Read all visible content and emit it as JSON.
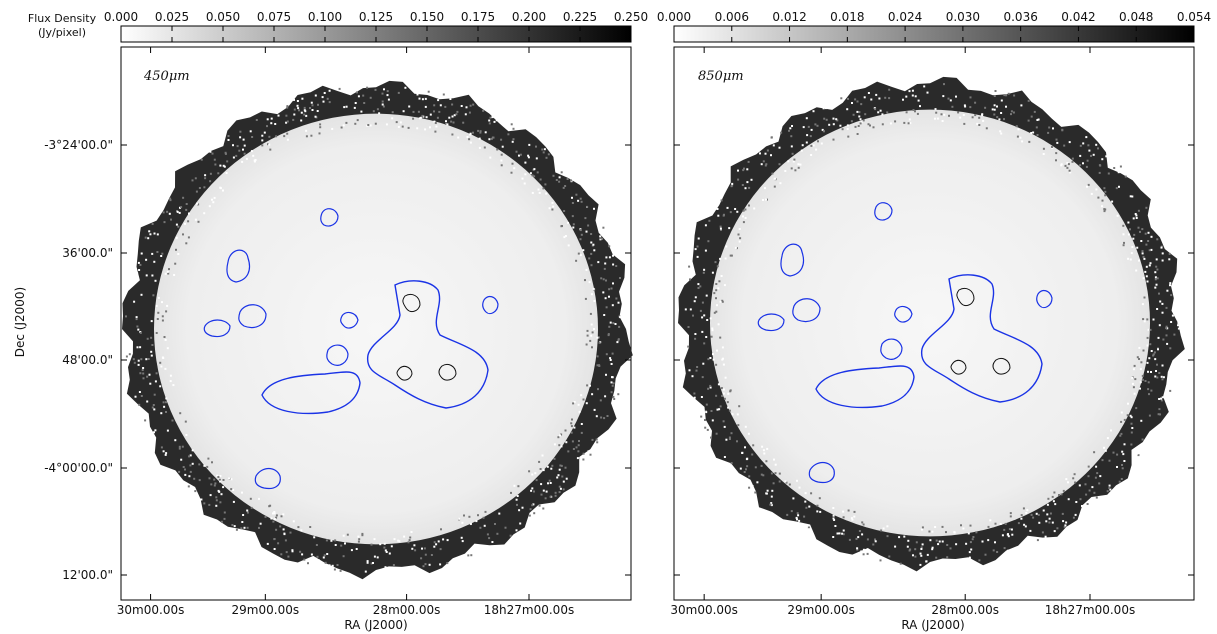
{
  "colorbar": {
    "label_line1": "Flux Density",
    "label_line2": "(Jy/pixel)"
  },
  "axes": {
    "xlabel": "RA (J2000)",
    "ylabel": "Dec (J2000)"
  },
  "colors": {
    "contour_outer": "#1a33e6",
    "contour_inner": "#111111",
    "map_background": "#f4f4f4",
    "edge_noise": "#111111"
  },
  "chart_data": [
    {
      "type": "heatmap",
      "panel_label": "450μm",
      "colorbar_ticks": [
        "0.000",
        "0.025",
        "0.050",
        "0.075",
        "0.100",
        "0.125",
        "0.150",
        "0.175",
        "0.200",
        "0.225",
        "0.250"
      ],
      "colorbar_range": [
        0.0,
        0.25
      ],
      "colormap": "greys",
      "xlabel": "RA (J2000)",
      "ylabel": "Dec (J2000)",
      "x_ticks": [
        "30m00.00s",
        "29m00.00s",
        "28m00.00s",
        "18h27m00.00s"
      ],
      "y_ticks": [
        "-3°24'00.0\"",
        "36'00.0\"",
        "48'00.0\"",
        "-4°00'00.0\"",
        "12'00.0\""
      ],
      "grid": false
    },
    {
      "type": "heatmap",
      "panel_label": "850μm",
      "colorbar_ticks": [
        "0.000",
        "0.006",
        "0.012",
        "0.018",
        "0.024",
        "0.030",
        "0.036",
        "0.042",
        "0.048",
        "0.054"
      ],
      "colorbar_range": [
        0.0,
        0.054
      ],
      "colormap": "greys",
      "xlabel": "RA (J2000)",
      "x_ticks": [
        "30m00.00s",
        "29m00.00s",
        "28m00.00s",
        "18h27m00.00s"
      ],
      "grid": false
    }
  ]
}
